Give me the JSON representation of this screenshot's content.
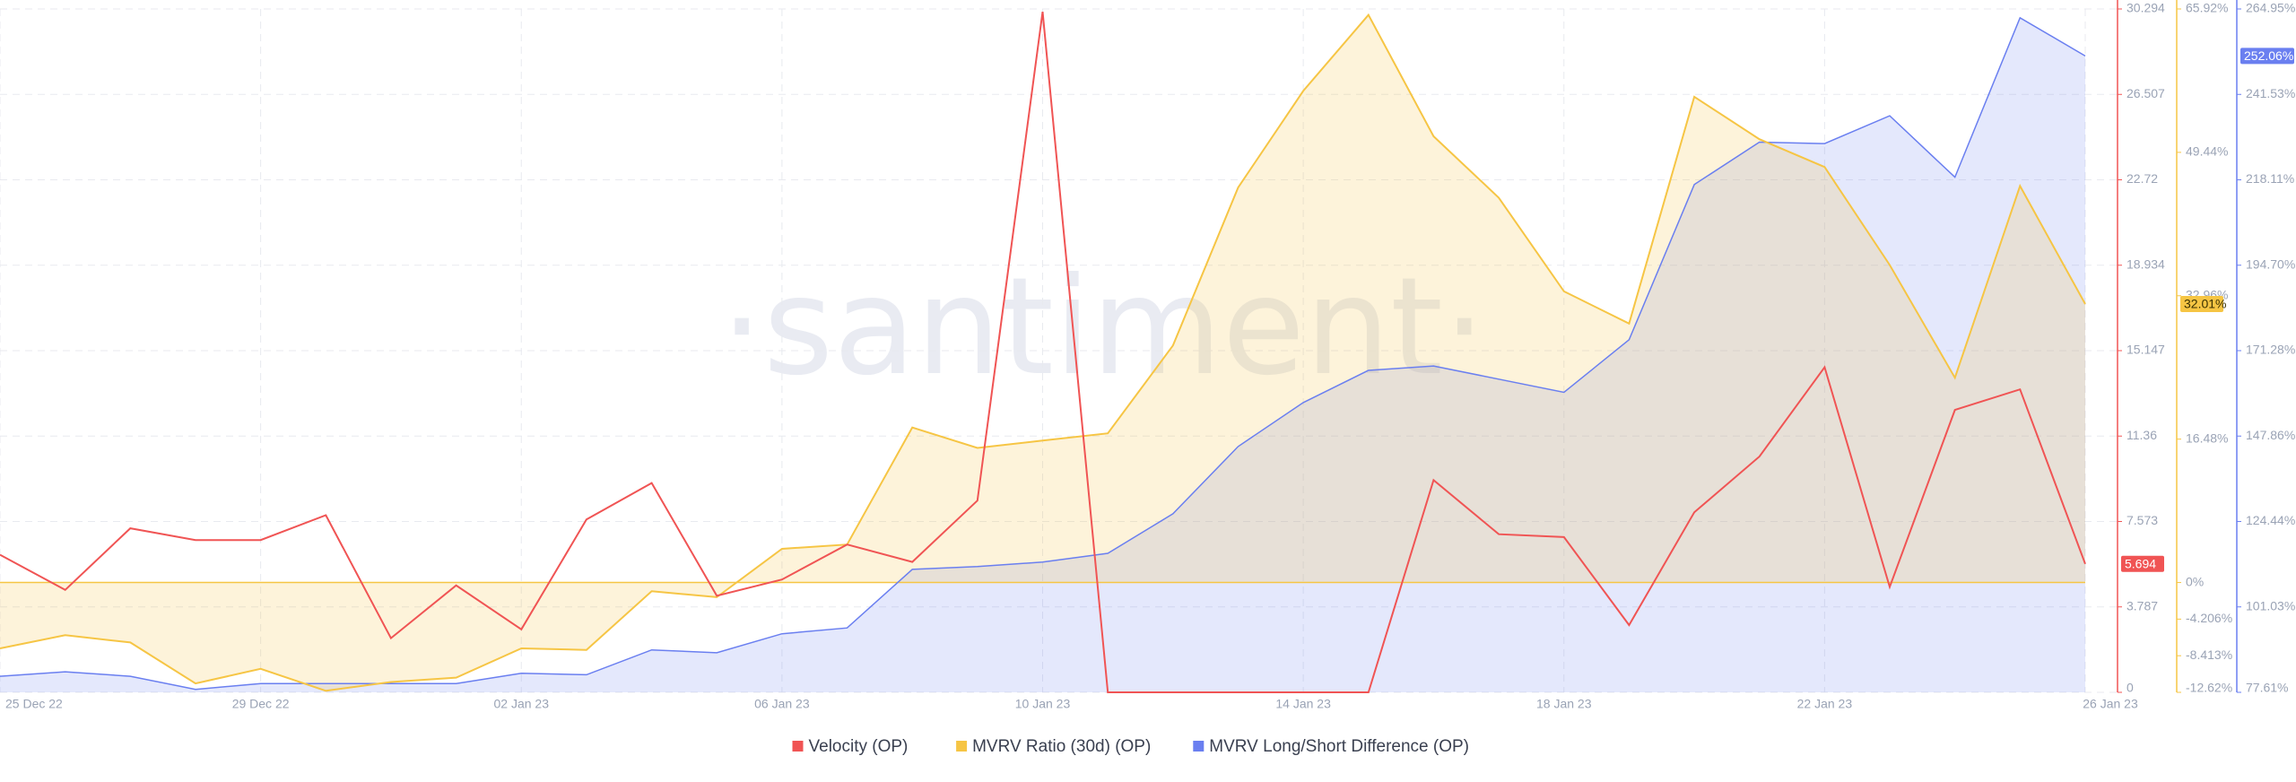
{
  "chart_data": {
    "type": "line",
    "watermark": "·santiment·",
    "categories": [
      "25 Dec 22",
      null,
      null,
      null,
      "29 Dec 22",
      null,
      null,
      null,
      "02 Jan 23",
      null,
      null,
      null,
      "06 Jan 23",
      null,
      null,
      null,
      "10 Jan 23",
      null,
      null,
      null,
      "14 Jan 23",
      null,
      null,
      null,
      "18 Jan 23",
      null,
      null,
      null,
      "22 Jan 23",
      null,
      null,
      null,
      "26 Jan 23"
    ],
    "series": [
      {
        "name": "Velocity (OP)",
        "color": "#f05454",
        "axis": "y",
        "values": [
          6.1,
          4.54,
          7.27,
          6.75,
          6.75,
          7.85,
          2.4,
          4.74,
          2.79,
          7.66,
          9.28,
          4.28,
          5.0,
          6.55,
          5.78,
          8.5,
          30.17,
          0,
          0,
          0,
          0,
          0,
          9.41,
          7.01,
          6.88,
          2.98,
          7.98,
          10.45,
          14.41,
          4.67,
          12.52,
          13.43,
          5.694
        ]
      },
      {
        "name": "MVRV Ratio (30d) (OP)",
        "color": "#f6c544",
        "axis": "y2",
        "values": [
          -7.57,
          -6.05,
          -6.89,
          -11.6,
          -9.92,
          -12.44,
          -11.43,
          -10.93,
          -7.57,
          -7.74,
          -1.0,
          -1.68,
          3.87,
          4.37,
          17.82,
          15.47,
          16.31,
          17.15,
          27.24,
          45.4,
          56.5,
          65.24,
          51.28,
          44.22,
          33.46,
          29.76,
          55.83,
          50.95,
          47.76,
          36.49,
          23.54,
          45.57,
          32.01
        ],
        "value_labels": [
          null,
          null,
          null,
          null,
          null,
          null,
          null,
          null,
          null,
          null,
          null,
          null,
          null,
          null,
          null,
          null,
          null,
          null,
          null,
          null,
          null,
          null,
          null,
          null,
          null,
          null,
          null,
          null,
          null,
          null,
          null,
          null,
          "32.01%"
        ]
      },
      {
        "name": "MVRV Long/Short Difference (OP)",
        "color": "#6a7ff0",
        "axis": "y3",
        "values": [
          82.02,
          83.23,
          82.02,
          78.41,
          80.02,
          80.02,
          80.02,
          80.02,
          82.82,
          82.42,
          89.24,
          88.44,
          93.66,
          95.26,
          111.31,
          112.11,
          113.31,
          115.72,
          126.55,
          145.0,
          157.04,
          165.87,
          167.07,
          163.46,
          159.85,
          174.29,
          216.81,
          228.45,
          228.05,
          235.67,
          218.82,
          262.55,
          252.06
        ],
        "value_labels": [
          null,
          null,
          null,
          null,
          null,
          null,
          null,
          null,
          null,
          null,
          null,
          null,
          null,
          null,
          null,
          null,
          null,
          null,
          null,
          null,
          null,
          null,
          null,
          null,
          null,
          null,
          null,
          null,
          null,
          null,
          null,
          null,
          "252.06%"
        ]
      }
    ],
    "ylim": [
      0,
      30.294
    ],
    "yticks": [
      0,
      3.787,
      7.573,
      11.36,
      15.147,
      18.934,
      22.72,
      26.507,
      30.294
    ],
    "y2lim": [
      -12.62,
      65.92
    ],
    "y2ticks": [
      {
        "value": -12.62,
        "label": "-12.62%"
      },
      {
        "value": -8.413,
        "label": "-8.413%"
      },
      {
        "value": -4.206,
        "label": "-4.206%"
      },
      {
        "value": 0,
        "label": "0%"
      },
      {
        "value": 16.48,
        "label": "16.48%"
      },
      {
        "value": 32.96,
        "label": "32.96%"
      },
      {
        "value": 49.44,
        "label": "49.44%"
      },
      {
        "value": 65.92,
        "label": "65.92%"
      }
    ],
    "y3lim": [
      77.61,
      264.95
    ],
    "y3ticks": [
      {
        "value": 77.61,
        "label": "77.61%"
      },
      {
        "value": 101.03,
        "label": "101.03%"
      },
      {
        "value": 124.44,
        "label": "124.44%"
      },
      {
        "value": 147.86,
        "label": "147.86%"
      },
      {
        "value": 171.28,
        "label": "171.28%"
      },
      {
        "value": 194.7,
        "label": "194.70%"
      },
      {
        "value": 218.11,
        "label": "218.11%"
      },
      {
        "value": 241.53,
        "label": "241.53%"
      },
      {
        "value": 264.95,
        "label": "264.95%"
      }
    ],
    "grid": true,
    "legend": "bottom"
  }
}
